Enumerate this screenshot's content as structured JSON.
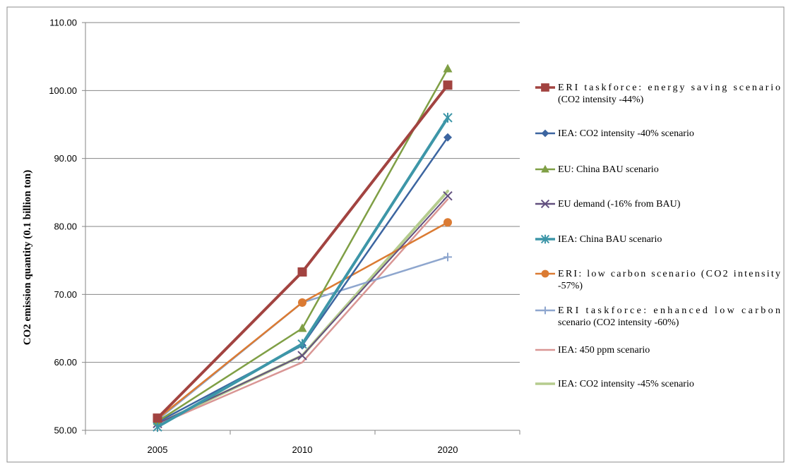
{
  "chart_data": {
    "type": "line",
    "title": "",
    "xlabel": "",
    "ylabel": "CO2 emission quantity (0.1 billion ton)",
    "categories": [
      "2005",
      "2010",
      "2020"
    ],
    "ylim": [
      50,
      110
    ],
    "yticks": [
      "50.00",
      "60.00",
      "70.00",
      "80.00",
      "90.00",
      "100.00",
      "110.00"
    ],
    "grid": "horizontal",
    "legend_position": "right",
    "series": [
      {
        "name": "ERI taskforce: energy saving scenario (CO2 intensity -44%)",
        "legend_lines": [
          "ERI taskforce: energy saving scenario",
          "(CO2 intensity -44%)"
        ],
        "values": [
          51.8,
          73.3,
          100.8
        ],
        "color": "#a24340",
        "marker": "square",
        "width": 4
      },
      {
        "name": "IEA: CO2 intensity -40% scenario",
        "legend_lines": [
          "IEA: CO2 intensity -40% scenario"
        ],
        "values": [
          51.2,
          62.5,
          93.1
        ],
        "color": "#3c65a0",
        "marker": "diamond",
        "width": 2.5
      },
      {
        "name": "EU: China BAU scenario",
        "legend_lines": [
          "EU: China BAU scenario"
        ],
        "values": [
          51.3,
          65.0,
          103.2
        ],
        "color": "#7f9f45",
        "marker": "triangle",
        "width": 2.5
      },
      {
        "name": "EU demand (-16% from BAU)",
        "legend_lines": [
          "EU demand (-16% from BAU)"
        ],
        "values": [
          51.0,
          61.0,
          84.5
        ],
        "color": "#62507f",
        "marker": "x",
        "width": 2
      },
      {
        "name": "IEA: China BAU scenario",
        "legend_lines": [
          "IEA: China BAU scenario"
        ],
        "values": [
          50.5,
          62.7,
          96.0
        ],
        "color": "#3d96a8",
        "marker": "star",
        "width": 4
      },
      {
        "name": "ERI: low carbon scenario (CO2 intensity -57%)",
        "legend_lines": [
          "ERI: low carbon scenario (CO2 intensity",
          "-57%)"
        ],
        "values": [
          51.7,
          68.8,
          80.6
        ],
        "color": "#db7b33",
        "marker": "circle",
        "width": 2.5
      },
      {
        "name": "ERI taskforce: enhanced low carbon scenario (CO2 intensity -60%)",
        "legend_lines": [
          "ERI taskforce: enhanced low carbon",
          "scenario (CO2 intensity -60%)"
        ],
        "values": [
          51.5,
          68.8,
          75.5
        ],
        "color": "#8ea6ce",
        "marker": "plus",
        "width": 2.5
      },
      {
        "name": "IEA: 450 ppm scenario",
        "legend_lines": [
          "IEA: 450 ppm scenario"
        ],
        "values": [
          50.8,
          60.0,
          84.0
        ],
        "color": "#d99694",
        "marker": "none",
        "width": 2.5
      },
      {
        "name": "IEA: CO2 intensity -45% scenario",
        "legend_lines": [
          "IEA: CO2 intensity -45% scenario"
        ],
        "values": [
          50.9,
          61.0,
          85.2
        ],
        "color": "#b5cc8e",
        "marker": "none",
        "width": 4
      }
    ]
  }
}
